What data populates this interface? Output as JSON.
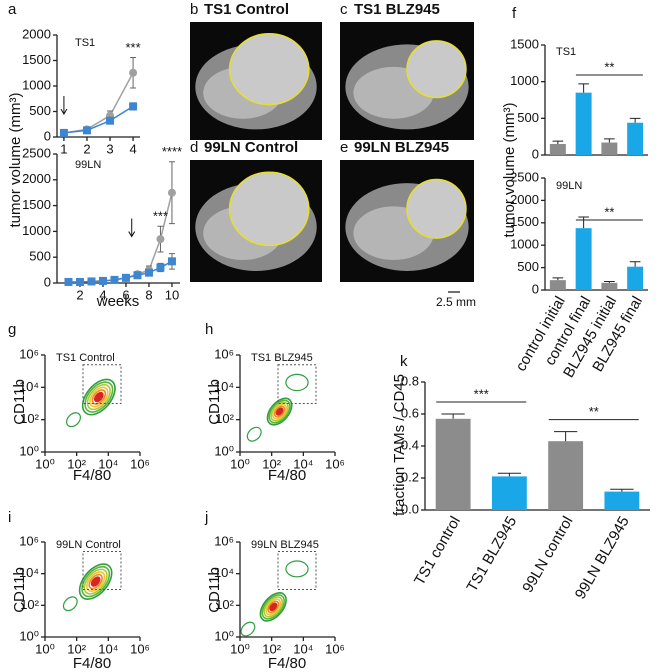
{
  "chart_data": [
    {
      "type": "line",
      "panel": "a",
      "label": "TS1",
      "y_label": "tumor volume (mm³)",
      "x": [
        1,
        2,
        3,
        4
      ],
      "xlim": [
        0.7,
        4.3
      ],
      "xticks": [
        1,
        2,
        3,
        4
      ],
      "ylim": [
        0,
        2000
      ],
      "yticks": [
        0,
        500,
        1000,
        1500,
        2000
      ],
      "series": [
        {
          "color": "#a0a0a0",
          "marker": "circle",
          "values": [
            80,
            150,
            420,
            1260
          ],
          "errors": [
            20,
            30,
            90,
            300
          ]
        },
        {
          "color": "#3f86d0",
          "marker": "square",
          "values": [
            80,
            130,
            320,
            600
          ],
          "errors": [
            20,
            20,
            40,
            70
          ]
        }
      ],
      "annotations": [
        "***"
      ]
    },
    {
      "type": "line",
      "label": "99LN",
      "x_label": "weeks",
      "x": [
        1,
        2,
        3,
        4,
        5,
        6,
        7,
        8,
        9,
        10
      ],
      "xlim": [
        0,
        10.7
      ],
      "xticks": [
        2,
        4,
        6,
        8,
        10
      ],
      "ylim": [
        0,
        2500
      ],
      "yticks": [
        0,
        500,
        1000,
        1500,
        2000,
        2500
      ],
      "series": [
        {
          "color": "#a0a0a0",
          "marker": "circle",
          "values": [
            20,
            20,
            30,
            40,
            60,
            100,
            170,
            250,
            850,
            1750
          ],
          "errors": [
            10,
            10,
            10,
            10,
            20,
            30,
            50,
            80,
            250,
            600
          ]
        },
        {
          "color": "#3f86d0",
          "marker": "square",
          "values": [
            20,
            20,
            30,
            40,
            60,
            100,
            150,
            200,
            300,
            420
          ],
          "errors": [
            10,
            10,
            10,
            10,
            20,
            30,
            40,
            60,
            80,
            150
          ]
        }
      ],
      "annotations": [
        "***",
        "****"
      ]
    },
    {
      "type": "bar",
      "panel": "f",
      "label": "TS1",
      "y_label": "tumor volume (mm³)",
      "values": [
        150,
        850,
        170,
        440
      ],
      "errors": [
        40,
        120,
        50,
        60
      ],
      "colors": [
        "#8c8c8c",
        "#1aa7e8",
        "#8c8c8c",
        "#1aa7e8"
      ],
      "ylim": [
        0,
        1500
      ],
      "yticks": [
        0,
        500,
        1000,
        1500
      ],
      "annotations": [
        "**"
      ]
    },
    {
      "type": "bar",
      "label": "99LN",
      "categories": [
        "control initial",
        "control final",
        "BLZ945 initial",
        "BLZ945 final"
      ],
      "values": [
        220,
        1380,
        160,
        520
      ],
      "errors": [
        50,
        250,
        30,
        110
      ],
      "colors": [
        "#8c8c8c",
        "#1aa7e8",
        "#8c8c8c",
        "#1aa7e8"
      ],
      "ylim": [
        0,
        2500
      ],
      "yticks": [
        0,
        500,
        1000,
        1500,
        2000,
        2500
      ],
      "annotations": [
        "**"
      ]
    },
    {
      "type": "bar",
      "panel": "k",
      "y_label": "fraction TAMs / CD45",
      "categories": [
        "TS1 control",
        "TS1 BLZ945",
        "99LN control",
        "99LN BLZ945"
      ],
      "values": [
        0.57,
        0.21,
        0.43,
        0.115
      ],
      "errors": [
        0.03,
        0.02,
        0.06,
        0.015
      ],
      "colors": [
        "#8c8c8c",
        "#1aa7e8",
        "#8c8c8c",
        "#1aa7e8"
      ],
      "ylim": [
        0,
        0.8
      ],
      "yticks": [
        {
          "value": 0,
          "label": "0.0"
        },
        0.2,
        0.4,
        0.6,
        0.8
      ],
      "annotations": [
        "***",
        "**"
      ]
    },
    {
      "type": "contour",
      "panel": "g",
      "label": "TS1 Control",
      "x_label": "F4/80",
      "y_label": "CD11b",
      "log": true,
      "xlim": [
        1,
        1000000
      ],
      "ylim": [
        1,
        1000000
      ],
      "xticks": [
        {
          "value": 1,
          "label": "10⁰"
        },
        {
          "value": 100,
          "label": "10²"
        },
        {
          "value": 10000,
          "label": "10⁴"
        },
        {
          "value": 1000000,
          "label": "10⁶"
        }
      ],
      "yticks": [
        {
          "value": 1,
          "label": "10⁰"
        },
        {
          "value": 100,
          "label": "10²"
        },
        {
          "value": 10000,
          "label": "10⁴"
        },
        {
          "value": 1000000,
          "label": "10⁶"
        }
      ]
    },
    {
      "type": "contour",
      "panel": "h",
      "label": "TS1 BLZ945",
      "x_label": "F4/80",
      "y_label": "CD11b",
      "log": true,
      "xlim": [
        1,
        1000000
      ],
      "ylim": [
        1,
        1000000
      ],
      "xticks": [
        {
          "value": 1,
          "label": "10⁰"
        },
        {
          "value": 100,
          "label": "10²"
        },
        {
          "value": 10000,
          "label": "10⁴"
        },
        {
          "value": 1000000,
          "label": "10⁶"
        }
      ],
      "yticks": [
        {
          "value": 1,
          "label": "10⁰"
        },
        {
          "value": 100,
          "label": "10²"
        },
        {
          "value": 10000,
          "label": "10⁴"
        },
        {
          "value": 1000000,
          "label": "10⁶"
        }
      ]
    },
    {
      "type": "contour",
      "panel": "i",
      "label": "99LN Control",
      "x_label": "F4/80",
      "y_label": "CD11b",
      "log": true,
      "xlim": [
        1,
        1000000
      ],
      "ylim": [
        1,
        1000000
      ],
      "xticks": [
        {
          "value": 1,
          "label": "10⁰"
        },
        {
          "value": 100,
          "label": "10²"
        },
        {
          "value": 10000,
          "label": "10⁴"
        },
        {
          "value": 1000000,
          "label": "10⁶"
        }
      ],
      "yticks": [
        {
          "value": 1,
          "label": "10⁰"
        },
        {
          "value": 100,
          "label": "10²"
        },
        {
          "value": 10000,
          "label": "10⁴"
        },
        {
          "value": 1000000,
          "label": "10⁶"
        }
      ]
    },
    {
      "type": "contour",
      "panel": "j",
      "label": "99LN BLZ945",
      "x_label": "F4/80",
      "y_label": "CD11b",
      "log": true,
      "xlim": [
        1,
        1000000
      ],
      "ylim": [
        1,
        1000000
      ],
      "xticks": [
        {
          "value": 1,
          "label": "10⁰"
        },
        {
          "value": 100,
          "label": "10²"
        },
        {
          "value": 10000,
          "label": "10⁴"
        },
        {
          "value": 1000000,
          "label": "10⁶"
        }
      ],
      "yticks": [
        {
          "value": 1,
          "label": "10⁰"
        },
        {
          "value": 100,
          "label": "10²"
        },
        {
          "value": 10000,
          "label": "10⁴"
        },
        {
          "value": 1000000,
          "label": "10⁶"
        }
      ]
    }
  ],
  "images": [
    {
      "panel": "b",
      "title": "TS1 Control"
    },
    {
      "panel": "c",
      "title": "TS1 BLZ945"
    },
    {
      "panel": "d",
      "title": "99LN Control"
    },
    {
      "panel": "e",
      "title": "99LN BLZ945"
    }
  ],
  "scale_bar": "2.5 mm"
}
